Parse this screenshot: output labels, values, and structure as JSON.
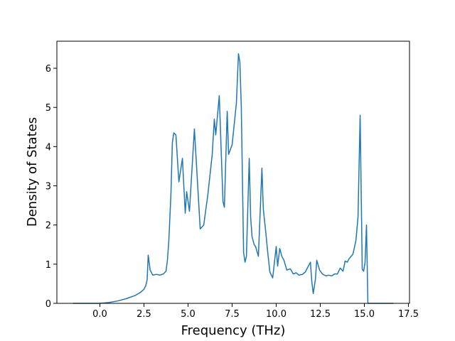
{
  "chart_data": {
    "type": "line",
    "x_label": "Frequency (THz)",
    "y_label": "Density of States",
    "x": [
      -1.53,
      0,
      0.5,
      1.0,
      1.5,
      2.0,
      2.3,
      2.5,
      2.6,
      2.68,
      2.74,
      2.85,
      3.0,
      3.2,
      3.4,
      3.6,
      3.75,
      3.83,
      3.91,
      4.03,
      4.11,
      4.19,
      4.31,
      4.48,
      4.68,
      4.84,
      4.92,
      5.08,
      5.36,
      5.69,
      5.89,
      6.13,
      6.37,
      6.49,
      6.57,
      6.77,
      6.98,
      7.06,
      7.22,
      7.3,
      7.5,
      7.74,
      7.86,
      7.94,
      8.02,
      8.15,
      8.23,
      8.31,
      8.47,
      8.55,
      8.63,
      8.75,
      8.83,
      8.99,
      9.19,
      9.27,
      9.4,
      9.52,
      9.64,
      9.8,
      10.0,
      10.08,
      10.2,
      10.32,
      10.44,
      10.6,
      10.8,
      10.97,
      11.13,
      11.29,
      11.49,
      11.65,
      11.94,
      12.02,
      12.1,
      12.22,
      12.3,
      12.46,
      12.62,
      12.82,
      12.98,
      13.15,
      13.31,
      13.47,
      13.63,
      13.79,
      13.91,
      14.03,
      14.15,
      14.35,
      14.52,
      14.64,
      14.76,
      14.88,
      14.96,
      15.04,
      15.12,
      15.2,
      16.65
    ],
    "series": [
      {
        "color": "#1f77b4",
        "values": [
          0,
          0,
          0.02,
          0.06,
          0.12,
          0.2,
          0.28,
          0.36,
          0.45,
          0.6,
          1.23,
          0.85,
          0.72,
          0.74,
          0.72,
          0.75,
          0.82,
          1.1,
          1.6,
          2.8,
          4.1,
          4.35,
          4.3,
          3.1,
          3.7,
          2.3,
          2.85,
          2.35,
          4.45,
          1.9,
          2.0,
          2.8,
          3.8,
          4.7,
          4.3,
          5.3,
          2.6,
          2.45,
          4.9,
          3.8,
          4.05,
          5.1,
          6.37,
          6.15,
          5.0,
          1.3,
          1.05,
          1.2,
          3.7,
          2.2,
          1.7,
          1.5,
          1.45,
          1.2,
          3.45,
          2.4,
          1.85,
          1.3,
          0.8,
          0.65,
          1.45,
          0.95,
          1.4,
          1.2,
          1.1,
          0.85,
          0.88,
          0.75,
          0.78,
          0.72,
          0.74,
          0.8,
          1.05,
          0.55,
          0.25,
          0.6,
          1.1,
          0.85,
          0.75,
          0.7,
          0.72,
          0.7,
          0.75,
          0.75,
          0.9,
          0.82,
          1.08,
          1.05,
          1.15,
          1.25,
          1.6,
          2.2,
          4.8,
          0.87,
          0.82,
          1.05,
          2.0,
          0,
          0
        ]
      }
    ],
    "xlim": [
      -2.44,
      17.56
    ],
    "ylim": [
      0,
      6.69
    ],
    "xticks": [
      {
        "value": 0,
        "label": "0.0"
      },
      {
        "value": 2.5,
        "label": "2.5"
      },
      {
        "value": 5,
        "label": "5.0"
      },
      {
        "value": 7.5,
        "label": "7.5"
      },
      {
        "value": 10,
        "label": "10.0"
      },
      {
        "value": 12.5,
        "label": "12.5"
      },
      {
        "value": 15,
        "label": "15.0"
      },
      {
        "value": 17.5,
        "label": "17.5"
      }
    ],
    "yticks": [
      0,
      1,
      2,
      3,
      4,
      5,
      6
    ],
    "grid": false
  }
}
